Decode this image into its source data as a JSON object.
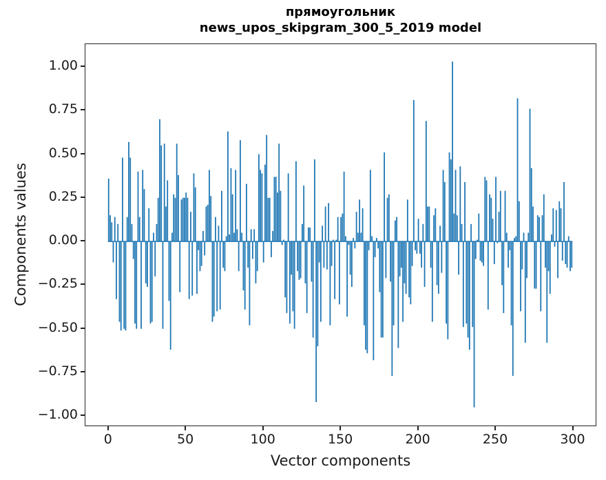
{
  "title": {
    "line1": "прямоугольник",
    "line2": "news_upos_skipgram_300_5_2019 model"
  },
  "axes": {
    "xlabel": "Vector components",
    "ylabel": "Components values"
  },
  "chart_data": {
    "type": "bar",
    "title": "прямоугольник\nnews_upos_skipgram_300_5_2019 model",
    "xlabel": "Vector components",
    "ylabel": "Components values",
    "legend": null,
    "grid": false,
    "xlim": [
      -15,
      314
    ],
    "ylim": [
      -1.05,
      1.13
    ],
    "x_ticks": [
      0,
      50,
      100,
      150,
      200,
      250,
      300
    ],
    "x_tick_labels": [
      "0",
      "50",
      "100",
      "150",
      "200",
      "250",
      "300"
    ],
    "y_ticks": [
      1.0,
      0.75,
      0.5,
      0.25,
      0.0,
      -0.25,
      -0.5,
      -0.75,
      -1.0
    ],
    "y_tick_labels": [
      "1.00",
      "0.75",
      "0.50",
      "0.25",
      "0.00",
      "−0.25",
      "−0.50",
      "−0.75",
      "−1.00"
    ],
    "bar_width_units": 0.8,
    "colors": {
      "bar": "#1f77b4",
      "axis": "#222222",
      "text": "#1a1a1a"
    },
    "n_components": 300,
    "values": [
      0.36,
      0.15,
      0.11,
      -0.12,
      0.14,
      -0.33,
      0.1,
      -0.46,
      -0.51,
      0.48,
      -0.5,
      -0.51,
      0.14,
      0.57,
      0.48,
      0.1,
      -0.1,
      -0.47,
      -0.5,
      0.4,
      0.14,
      -0.5,
      0.41,
      0.3,
      -0.24,
      -0.26,
      0.19,
      -0.47,
      -0.46,
      0.05,
      -0.2,
      0.1,
      0.25,
      0.7,
      0.55,
      -0.5,
      0.56,
      0.2,
      0.35,
      -0.34,
      -0.62,
      0.05,
      0.27,
      0.25,
      0.56,
      0.38,
      -0.29,
      0.24,
      0.25,
      0.25,
      0.28,
      0.25,
      -0.33,
      0.17,
      -0.31,
      0.39,
      0.31,
      -0.3,
      -0.05,
      -0.17,
      -0.14,
      0.06,
      -0.08,
      0.2,
      0.21,
      0.41,
      0.26,
      -0.46,
      -0.43,
      0.14,
      -0.4,
      0.09,
      -0.39,
      0.29,
      -0.15,
      -0.17,
      0.03,
      0.63,
      0.04,
      0.42,
      0.27,
      0.05,
      0.41,
      0.07,
      -0.17,
      0.58,
      0.05,
      -0.28,
      -0.39,
      0.33,
      -0.15,
      -0.48,
      0.07,
      -0.1,
      0.07,
      -0.24,
      -0.17,
      0.5,
      0.41,
      0.39,
      -0.12,
      0.44,
      0.61,
      0.25,
      0.25,
      -0.09,
      0.06,
      0.37,
      0.37,
      0.28,
      0.56,
      0.29,
      -0.02,
      0.01,
      -0.32,
      -0.41,
      0.39,
      -0.47,
      -0.19,
      -0.4,
      -0.5,
      0.46,
      -0.17,
      -0.22,
      -0.21,
      0.1,
      0.32,
      -0.24,
      -0.41,
      0.08,
      0.08,
      -0.23,
      -0.55,
      0.47,
      -0.92,
      -0.6,
      -0.12,
      -0.46,
      0.09,
      -0.15,
      0.2,
      -0.16,
      0.22,
      -0.48,
      -0.14,
      0.01,
      -0.33,
      0.01,
      0.14,
      -0.36,
      0.14,
      0.16,
      0.4,
      0.03,
      -0.43,
      -0.02,
      -0.19,
      -0.26,
      0.02,
      -0.04,
      0.17,
      0.05,
      0.24,
      0.05,
      0.19,
      -0.48,
      -0.62,
      -0.64,
      -0.05,
      0.41,
      0.03,
      -0.68,
      -0.09,
      0.02,
      -0.04,
      -0.29,
      -0.55,
      -0.55,
      0.51,
      -0.21,
      0.25,
      0.27,
      -0.23,
      -0.77,
      -0.48,
      0.12,
      0.14,
      -0.61,
      -0.2,
      -0.15,
      -0.46,
      -0.24,
      -0.3,
      0.24,
      -0.32,
      -0.36,
      -0.14,
      0.81,
      -0.05,
      -0.07,
      0.13,
      -0.07,
      -0.15,
      0.1,
      -0.26,
      0.69,
      0.2,
      0.2,
      -0.15,
      -0.46,
      0.15,
      0.19,
      -0.25,
      -0.3,
      0.09,
      -0.18,
      0.41,
      0.34,
      -0.47,
      -0.56,
      0.51,
      0.47,
      1.03,
      0.16,
      0.41,
      0.15,
      -0.19,
      0.43,
      0.1,
      -0.49,
      0.34,
      -0.47,
      -0.55,
      -0.62,
      0.1,
      -0.49,
      -0.95,
      -0.1,
      0.01,
      0.16,
      -0.11,
      -0.12,
      -0.14,
      0.37,
      0.35,
      -0.39,
      0.27,
      0.25,
      0.13,
      -0.13,
      0.37,
      -0.01,
      0.17,
      0.29,
      -0.25,
      -0.41,
      0.29,
      0.05,
      -0.15,
      -0.05,
      -0.48,
      -0.77,
      0.02,
      0.03,
      0.82,
      0.23,
      -0.4,
      -0.16,
      0.05,
      -0.58,
      -0.21,
      0.05,
      0.76,
      0.42,
      0.2,
      -0.27,
      -0.27,
      0.15,
      0.14,
      -0.4,
      0.15,
      0.27,
      -0.15,
      -0.58,
      -0.17,
      -0.3,
      0.04,
      0.19,
      -0.03,
      0.18,
      -0.21,
      0.23,
      0.19,
      -0.11,
      0.34,
      -0.13,
      -0.15,
      0.03,
      -0.17,
      -0.15
    ]
  }
}
